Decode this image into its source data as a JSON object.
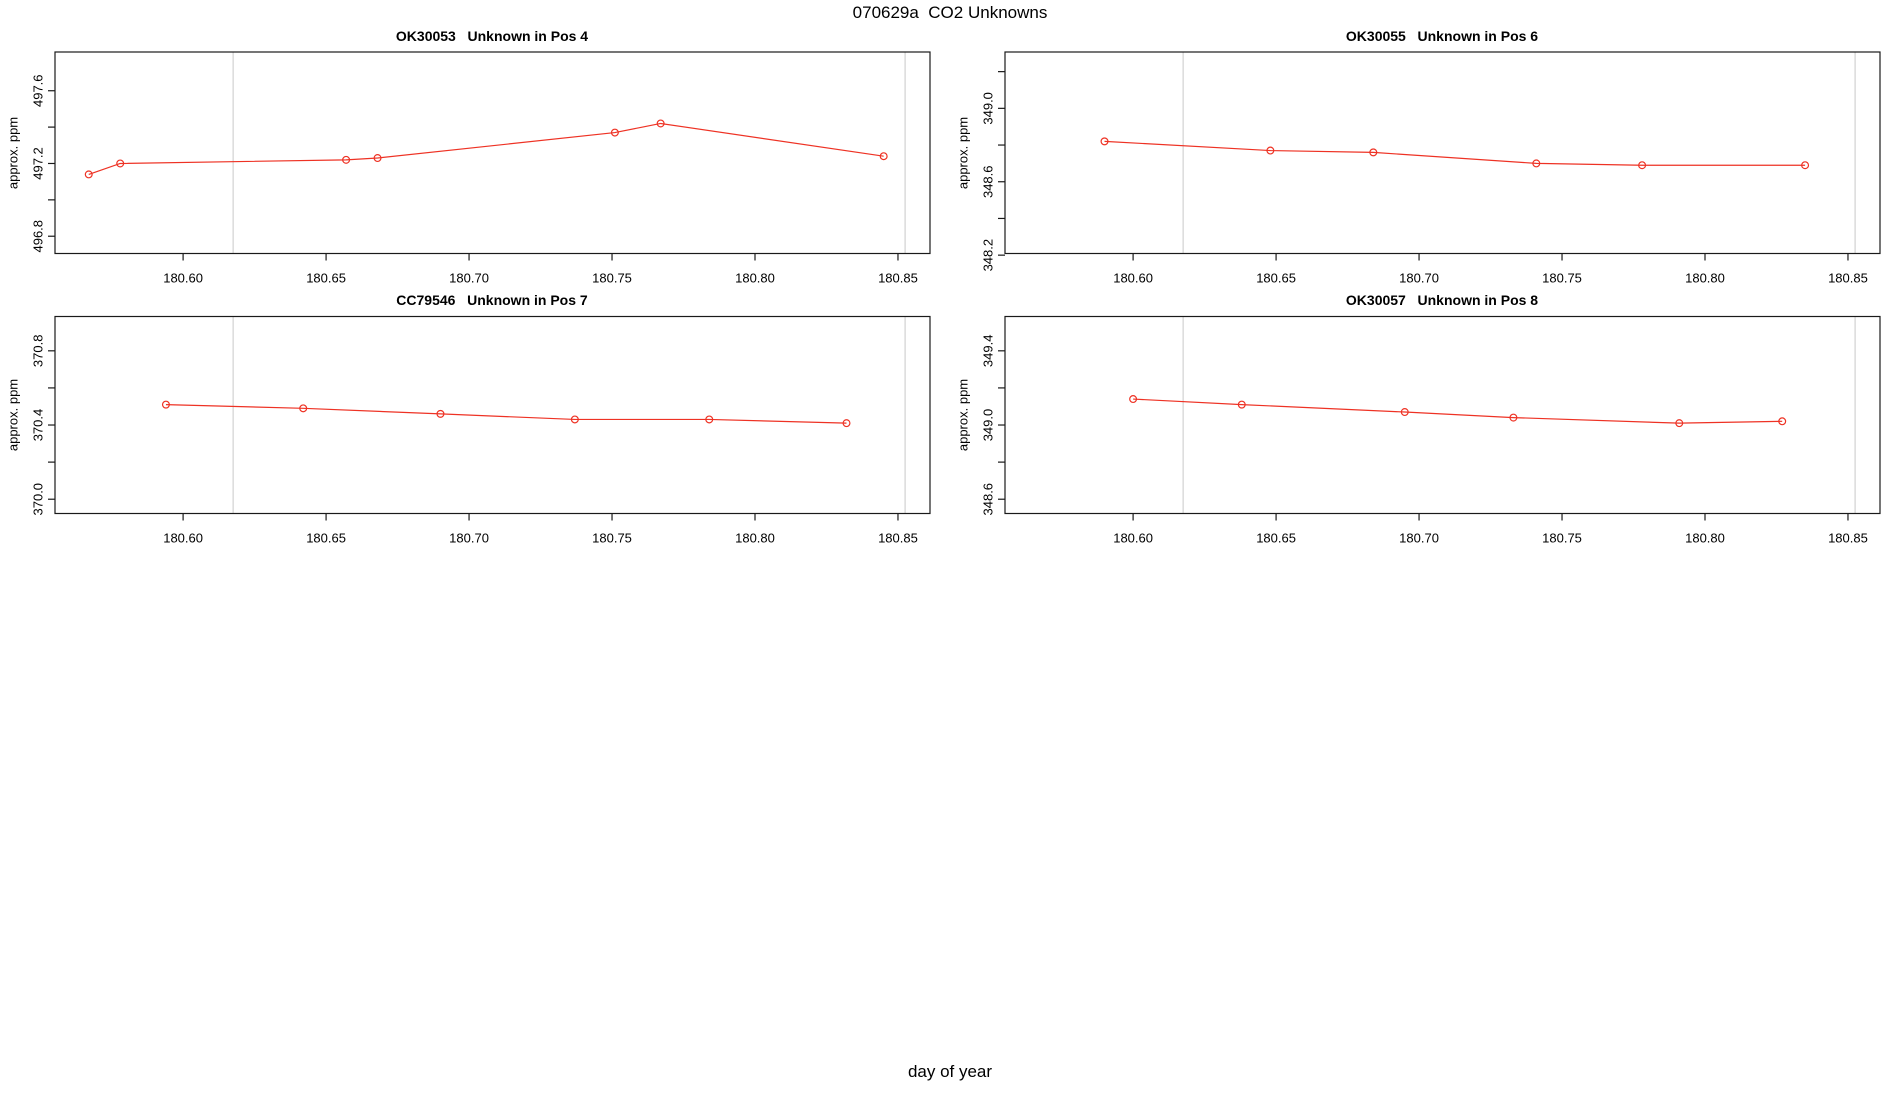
{
  "figure": {
    "title": "070629a  CO2 Unknowns",
    "xlabel": "day of year",
    "colors": {
      "series": "#ee3224",
      "reference_line": "#d8d8d8",
      "box": "#1a1a1a",
      "background": "#ffffff"
    }
  },
  "chart_data": [
    {
      "type": "line",
      "title": "OK30053   Unknown in Pos 4",
      "ylabel": "approx. ppm",
      "x": [
        180.567,
        180.578,
        180.657,
        180.668,
        180.751,
        180.767,
        180.845
      ],
      "y": [
        497.14,
        497.2,
        497.22,
        497.23,
        497.37,
        497.42,
        497.24
      ],
      "xlim": [
        180.5552,
        180.8612
      ],
      "ylim": [
        496.705,
        497.813
      ],
      "xticks": [
        180.6,
        180.65,
        180.7,
        180.75,
        180.8,
        180.85
      ],
      "xtick_labels": [
        "180.60",
        "180.65",
        "180.70",
        "180.75",
        "180.80",
        "180.85"
      ],
      "yticks": [
        496.8,
        497.0,
        497.2,
        497.4,
        497.6
      ],
      "ytick_labels": [
        "496.8",
        "",
        "497.2",
        "",
        "497.6"
      ],
      "vlines": [
        180.6175,
        180.8525
      ],
      "marker": "open-circle",
      "grid": "off",
      "legend": "none"
    },
    {
      "type": "line",
      "title": "OK30055   Unknown in Pos 6",
      "ylabel": "approx. ppm",
      "x": [
        180.59,
        180.648,
        180.684,
        180.741,
        180.778,
        180.835
      ],
      "y": [
        348.82,
        348.77,
        348.76,
        348.7,
        348.69,
        348.69
      ],
      "xlim": [
        180.5552,
        180.8612
      ],
      "ylim": [
        348.209,
        349.307
      ],
      "xticks": [
        180.6,
        180.65,
        180.7,
        180.75,
        180.8,
        180.85
      ],
      "xtick_labels": [
        "180.60",
        "180.65",
        "180.70",
        "180.75",
        "180.80",
        "180.85"
      ],
      "yticks": [
        348.2,
        348.4,
        348.6,
        348.8,
        349.0,
        349.2
      ],
      "ytick_labels": [
        "348.2",
        "",
        "348.6",
        "",
        "349.0",
        ""
      ],
      "vlines": [
        180.6175,
        180.8525
      ],
      "marker": "open-circle",
      "grid": "off",
      "legend": "none"
    },
    {
      "type": "line",
      "title": "CC79546   Unknown in Pos 7",
      "ylabel": "approx. ppm",
      "x": [
        180.594,
        180.642,
        180.69,
        180.737,
        180.784,
        180.832
      ],
      "y": [
        370.51,
        370.49,
        370.46,
        370.43,
        370.43,
        370.41
      ],
      "xlim": [
        180.5552,
        180.8612
      ],
      "ylim": [
        369.923,
        370.985
      ],
      "xticks": [
        180.6,
        180.65,
        180.7,
        180.75,
        180.8,
        180.85
      ],
      "xtick_labels": [
        "180.60",
        "180.65",
        "180.70",
        "180.75",
        "180.80",
        "180.85"
      ],
      "yticks": [
        370.0,
        370.2,
        370.4,
        370.6,
        370.8
      ],
      "ytick_labels": [
        "370.0",
        "",
        "370.4",
        "",
        "370.8"
      ],
      "vlines": [
        180.6175,
        180.8525
      ],
      "marker": "open-circle",
      "grid": "off",
      "legend": "none"
    },
    {
      "type": "line",
      "title": "OK30057   Unknown in Pos 8",
      "ylabel": "approx. ppm",
      "x": [
        180.6,
        180.638,
        180.695,
        180.733,
        180.791,
        180.827
      ],
      "y": [
        349.14,
        349.11,
        349.07,
        349.04,
        349.01,
        349.02
      ],
      "xlim": [
        180.5552,
        180.8612
      ],
      "ylim": [
        348.523,
        349.585
      ],
      "xticks": [
        180.6,
        180.65,
        180.7,
        180.75,
        180.8,
        180.85
      ],
      "xtick_labels": [
        "180.60",
        "180.65",
        "180.70",
        "180.75",
        "180.80",
        "180.85"
      ],
      "yticks": [
        348.6,
        348.8,
        349.0,
        349.2,
        349.4
      ],
      "ytick_labels": [
        "348.6",
        "",
        "349.0",
        "",
        "349.4"
      ],
      "vlines": [
        180.6175,
        180.8525
      ],
      "marker": "open-circle",
      "grid": "off",
      "legend": "none"
    }
  ]
}
